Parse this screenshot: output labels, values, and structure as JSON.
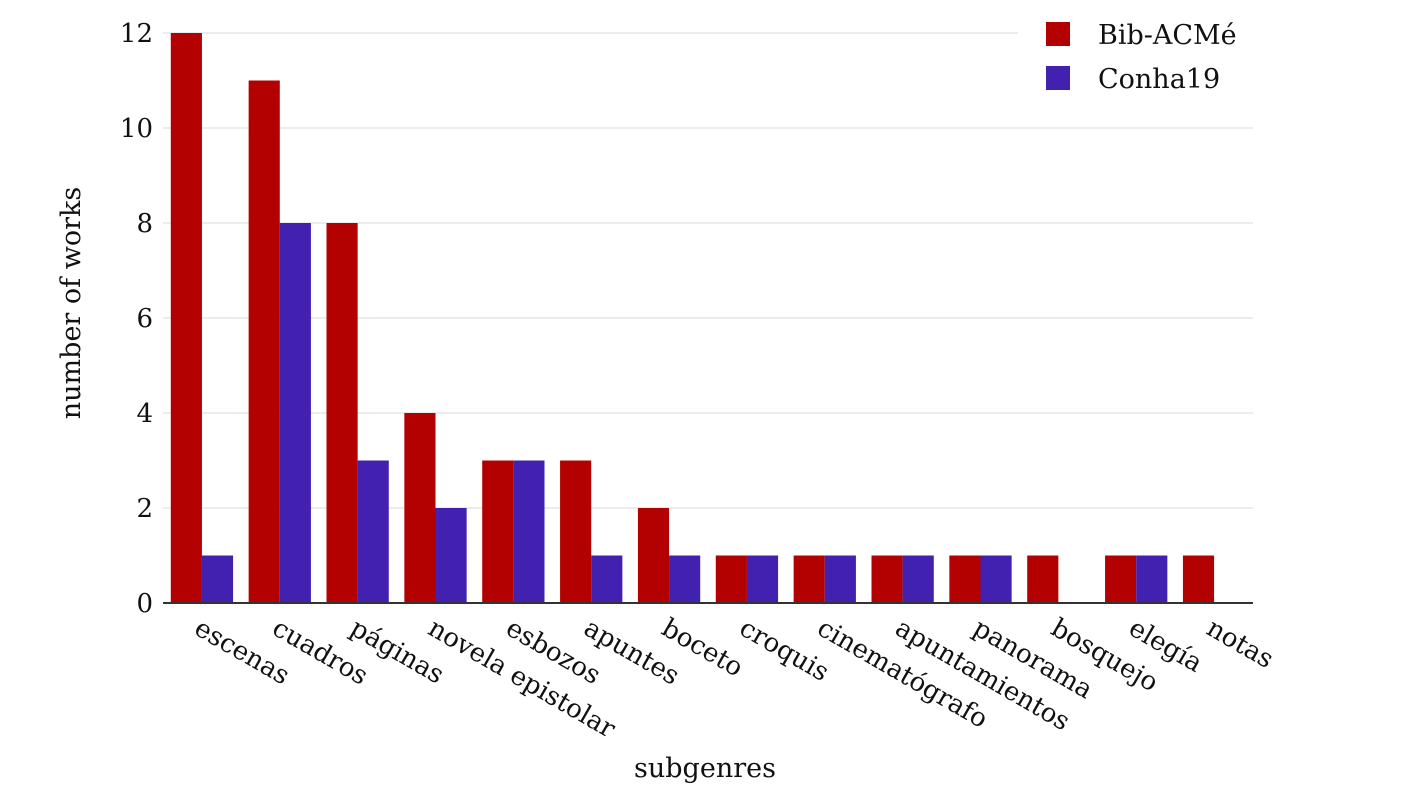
{
  "chart_data": {
    "type": "bar",
    "title": "",
    "xlabel": "subgenres",
    "ylabel": "number of works",
    "ylim": [
      0,
      12
    ],
    "yticks": [
      0,
      2,
      4,
      6,
      8,
      10,
      12
    ],
    "grid": true,
    "legend_position": "top-right",
    "categories": [
      "escenas",
      "cuadros",
      "páginas",
      "novela epistolar",
      "esbozos",
      "apuntes",
      "boceto",
      "croquis",
      "cinematógrafo",
      "apuntamientos",
      "panorama",
      "bosquejo",
      "elegía",
      "notas"
    ],
    "series": [
      {
        "name": "Bib-ACMé",
        "color": "#b30000",
        "values": [
          12,
          11,
          8,
          4,
          3,
          3,
          2,
          1,
          1,
          1,
          1,
          1,
          1,
          1
        ]
      },
      {
        "name": "Conha19",
        "color": "#4321b0",
        "values": [
          1,
          8,
          3,
          2,
          3,
          1,
          1,
          1,
          1,
          1,
          1,
          0,
          1,
          0
        ]
      }
    ]
  }
}
